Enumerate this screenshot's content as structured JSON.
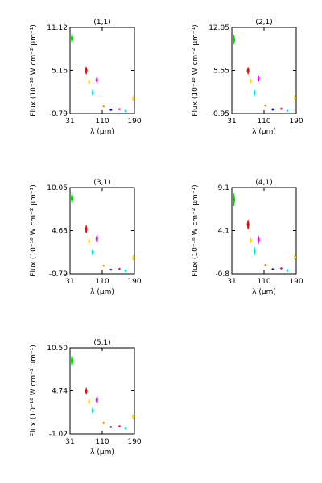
{
  "chart_data": [
    {
      "type": "scatter",
      "title": "(1,1)",
      "xlabel": "λ (μm)",
      "ylabel": "Flux (10⁻¹⁸ W cm⁻² μm⁻¹)",
      "xlim": [
        31,
        190
      ],
      "ylim": [
        -0.79,
        11.12
      ],
      "xticks": [
        "31",
        "110",
        "190"
      ],
      "yticks": [
        "11.12",
        "5.16",
        "-0.79"
      ],
      "grid": false,
      "points": [
        {
          "x": 36,
          "ylo": 8.9,
          "yhi": 10.3,
          "color": "#00cc00"
        },
        {
          "x": 71,
          "ylo": 4.6,
          "yhi": 5.7,
          "color": "#ff0000"
        },
        {
          "x": 78,
          "ylo": 3.3,
          "yhi": 3.9,
          "color": "#ffdd00"
        },
        {
          "x": 87,
          "ylo": 1.7,
          "yhi": 2.5,
          "color": "#00e5ee"
        },
        {
          "x": 97,
          "ylo": 3.5,
          "yhi": 4.2,
          "color": "#ff00ff"
        },
        {
          "x": 114,
          "ylo": 0.1,
          "yhi": 0.3,
          "color": "#ff8800"
        },
        {
          "x": 132,
          "ylo": -0.4,
          "yhi": -0.2,
          "color": "#0000ff"
        },
        {
          "x": 153,
          "ylo": -0.3,
          "yhi": -0.1,
          "color": "#ff0080"
        },
        {
          "x": 168,
          "ylo": -0.6,
          "yhi": -0.3,
          "color": "#00e5ee"
        },
        {
          "x": 187,
          "ylo": 1.0,
          "yhi": 1.6,
          "color": "#ffdd00"
        }
      ]
    },
    {
      "type": "scatter",
      "title": "(2,1)",
      "xlabel": "λ (μm)",
      "ylabel": "Flux (10⁻¹⁸ W cm⁻² μm⁻¹)",
      "xlim": [
        31,
        190
      ],
      "ylim": [
        -0.95,
        12.05
      ],
      "xticks": [
        "31",
        "110",
        "190"
      ],
      "yticks": [
        "12.05",
        "5.55",
        "-0.95"
      ],
      "grid": false,
      "points": [
        {
          "x": 36,
          "ylo": 9.5,
          "yhi": 10.9,
          "color": "#00cc00"
        },
        {
          "x": 71,
          "ylo": 5.0,
          "yhi": 6.0,
          "color": "#ff0000"
        },
        {
          "x": 78,
          "ylo": 3.6,
          "yhi": 4.3,
          "color": "#ffdd00"
        },
        {
          "x": 87,
          "ylo": 1.8,
          "yhi": 2.6,
          "color": "#00e5ee"
        },
        {
          "x": 97,
          "ylo": 3.9,
          "yhi": 4.7,
          "color": "#ff00ff"
        },
        {
          "x": 114,
          "ylo": 0.1,
          "yhi": 0.4,
          "color": "#ff8800"
        },
        {
          "x": 132,
          "ylo": -0.5,
          "yhi": -0.2,
          "color": "#0000ff"
        },
        {
          "x": 153,
          "ylo": -0.4,
          "yhi": -0.1,
          "color": "#ff0080"
        },
        {
          "x": 168,
          "ylo": -0.7,
          "yhi": -0.4,
          "color": "#00e5ee"
        },
        {
          "x": 187,
          "ylo": 1.1,
          "yhi": 1.8,
          "color": "#ffdd00"
        }
      ]
    },
    {
      "type": "scatter",
      "title": "(3,1)",
      "xlabel": "λ (μm)",
      "ylabel": "Flux (10⁻¹⁸ W cm⁻² μm⁻¹)",
      "xlim": [
        31,
        190
      ],
      "ylim": [
        -0.79,
        10.05
      ],
      "xticks": [
        "31",
        "110",
        "190"
      ],
      "yticks": [
        "10.05",
        "4.63",
        "-0.79"
      ],
      "grid": false,
      "points": [
        {
          "x": 36,
          "ylo": 8.0,
          "yhi": 9.4,
          "color": "#00cc00"
        },
        {
          "x": 71,
          "ylo": 4.3,
          "yhi": 5.3,
          "color": "#ff0000"
        },
        {
          "x": 78,
          "ylo": 3.0,
          "yhi": 3.6,
          "color": "#ffdd00"
        },
        {
          "x": 87,
          "ylo": 1.5,
          "yhi": 2.3,
          "color": "#00e5ee"
        },
        {
          "x": 97,
          "ylo": 3.2,
          "yhi": 4.0,
          "color": "#ff00ff"
        },
        {
          "x": 114,
          "ylo": 0.1,
          "yhi": 0.3,
          "color": "#ff8800"
        },
        {
          "x": 132,
          "ylo": -0.4,
          "yhi": -0.2,
          "color": "#0000ff"
        },
        {
          "x": 153,
          "ylo": -0.3,
          "yhi": -0.1,
          "color": "#ff0080"
        },
        {
          "x": 168,
          "ylo": -0.6,
          "yhi": -0.3,
          "color": "#00e5ee"
        },
        {
          "x": 187,
          "ylo": 0.9,
          "yhi": 1.5,
          "color": "#ffdd00"
        }
      ]
    },
    {
      "type": "scatter",
      "title": "(4,1)",
      "xlabel": "λ (μm)",
      "ylabel": "Flux (10⁻¹⁸ W cm⁻² μm⁻¹)",
      "xlim": [
        31,
        190
      ],
      "ylim": [
        -0.8,
        9.1
      ],
      "xticks": [
        "31",
        "110",
        "190"
      ],
      "yticks": [
        "9.1",
        "4.1",
        "-0.8"
      ],
      "grid": false,
      "points": [
        {
          "x": 36,
          "ylo": 7.0,
          "yhi": 8.4,
          "color": "#00cc00"
        },
        {
          "x": 71,
          "ylo": 4.3,
          "yhi": 5.4,
          "color": "#ff0000"
        },
        {
          "x": 78,
          "ylo": 2.7,
          "yhi": 3.3,
          "color": "#ffdd00"
        },
        {
          "x": 87,
          "ylo": 1.4,
          "yhi": 2.2,
          "color": "#00e5ee"
        },
        {
          "x": 97,
          "ylo": 2.7,
          "yhi": 3.5,
          "color": "#ff00ff"
        },
        {
          "x": 114,
          "ylo": 0.1,
          "yhi": 0.3,
          "color": "#ff8800"
        },
        {
          "x": 132,
          "ylo": -0.4,
          "yhi": -0.2,
          "color": "#0000ff"
        },
        {
          "x": 153,
          "ylo": -0.3,
          "yhi": -0.1,
          "color": "#ff0080"
        },
        {
          "x": 168,
          "ylo": -0.6,
          "yhi": -0.3,
          "color": "#00e5ee"
        },
        {
          "x": 187,
          "ylo": 0.8,
          "yhi": 1.4,
          "color": "#ffdd00"
        }
      ]
    },
    {
      "type": "scatter",
      "title": "(5,1)",
      "xlabel": "λ (μm)",
      "ylabel": "Flux (10⁻¹⁸ W cm⁻² μm⁻¹)",
      "xlim": [
        31,
        190
      ],
      "ylim": [
        -1.02,
        10.5
      ],
      "xticks": [
        "31",
        "110",
        "190"
      ],
      "yticks": [
        "10.50",
        "4.74",
        "-1.02"
      ],
      "grid": false,
      "points": [
        {
          "x": 36,
          "ylo": 7.9,
          "yhi": 9.6,
          "color": "#00cc00"
        },
        {
          "x": 71,
          "ylo": 4.3,
          "yhi": 5.1,
          "color": "#ff0000"
        },
        {
          "x": 78,
          "ylo": 3.0,
          "yhi": 3.6,
          "color": "#ffdd00"
        },
        {
          "x": 87,
          "ylo": 1.7,
          "yhi": 2.5,
          "color": "#00e5ee"
        },
        {
          "x": 97,
          "ylo": 3.1,
          "yhi": 3.9,
          "color": "#ff00ff"
        },
        {
          "x": 114,
          "ylo": 0.3,
          "yhi": 0.6,
          "color": "#ff8800"
        },
        {
          "x": 132,
          "ylo": -0.2,
          "yhi": 0.0,
          "color": "#0000ff"
        },
        {
          "x": 153,
          "ylo": -0.1,
          "yhi": 0.1,
          "color": "#ff0080"
        },
        {
          "x": 168,
          "ylo": -0.4,
          "yhi": -0.2,
          "color": "#00e5ee"
        },
        {
          "x": 187,
          "ylo": 1.0,
          "yhi": 1.6,
          "color": "#ffdd00"
        }
      ]
    }
  ]
}
